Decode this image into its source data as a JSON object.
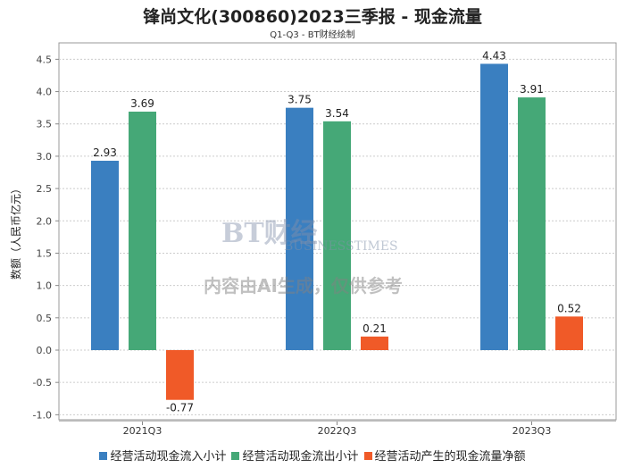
{
  "title": "锋尚文化(300860)2023三季报 - 现金流量",
  "subtitle": "Q1-Q3 - BT财经绘制",
  "watermark": {
    "brand": "BT财经",
    "brand_en": "BUSINESSTIMES",
    "notice": "内容由AI生成，仅供参考"
  },
  "chart_data": {
    "type": "bar",
    "title": "锋尚文化(300860)2023三季报 - 现金流量",
    "subtitle": "Q1-Q3 - BT财经绘制",
    "xlabel": "",
    "ylabel": "数额（人民币亿元）",
    "ylim": [
      -1.0,
      4.5
    ],
    "yticks": [
      "4.5",
      "4.0",
      "3.5",
      "3.0",
      "2.5",
      "2.0",
      "1.5",
      "1.0",
      "0.5",
      "0.0",
      "-0.5",
      "-1.0"
    ],
    "grid": true,
    "legend_position": "bottom",
    "categories": [
      "2021Q3",
      "2022Q3",
      "2023Q3"
    ],
    "series": [
      {
        "name": "经营活动现金流入小计",
        "color": "#3a7fc0",
        "values": [
          2.93,
          3.75,
          4.43
        ]
      },
      {
        "name": "经营活动现金流出小计",
        "color": "#45a877",
        "values": [
          3.69,
          3.54,
          3.91
        ]
      },
      {
        "name": "经营活动产生的现金流量净额",
        "color": "#f05a28",
        "values": [
          -0.77,
          0.21,
          0.52
        ]
      }
    ]
  }
}
